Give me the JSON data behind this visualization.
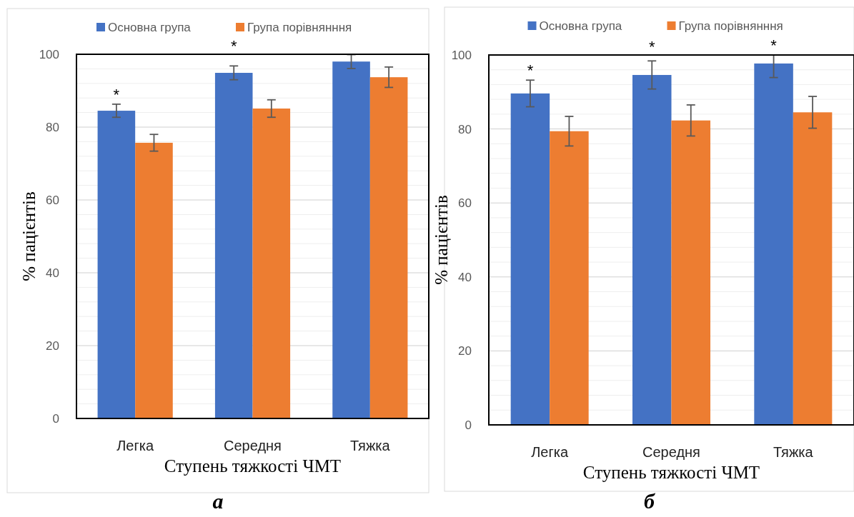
{
  "chart_data": [
    {
      "type": "bar",
      "title": "a",
      "xlabel": "Ступень тяжкості ЧМТ",
      "ylabel": "% пацієнтів",
      "categories": [
        "Легка",
        "Середня",
        "Тяжка"
      ],
      "series": [
        {
          "name": "Основна група",
          "color": "#4472c4",
          "values": [
            84.5,
            94.9,
            98.0
          ],
          "errors": [
            1.8,
            1.9,
            1.9
          ]
        },
        {
          "name": "Група порівнянння",
          "color": "#ed7d31",
          "values": [
            75.7,
            85.1,
            93.7
          ],
          "errors": [
            2.3,
            2.4,
            2.8
          ]
        }
      ],
      "ylim": [
        0,
        100
      ],
      "yticks": [
        0,
        20,
        40,
        60,
        80,
        100
      ],
      "grid": "y",
      "legend": "top",
      "annotations": [
        "*",
        "*"
      ]
    },
    {
      "type": "bar",
      "title": "б",
      "xlabel": "Ступень тяжкості ЧМТ",
      "ylabel": "% пацієнтів",
      "categories": [
        "Легка",
        "Середня",
        "Тяжка"
      ],
      "series": [
        {
          "name": "Основна група",
          "color": "#4472c4",
          "values": [
            89.6,
            94.6,
            97.7
          ],
          "errors": [
            3.6,
            3.8,
            [
              93.9,
              100
            ]
          ]
        },
        {
          "name": "Група порівнянння",
          "color": "#ed7d31",
          "values": [
            79.4,
            82.3,
            84.5
          ],
          "errors": [
            4.0,
            4.2,
            4.3
          ]
        }
      ],
      "ylim": [
        0,
        100
      ],
      "yticks": [
        0,
        20,
        40,
        60,
        80,
        100
      ],
      "grid": "y",
      "legend": "top",
      "annotations": [
        "*",
        "*",
        "*"
      ]
    }
  ]
}
